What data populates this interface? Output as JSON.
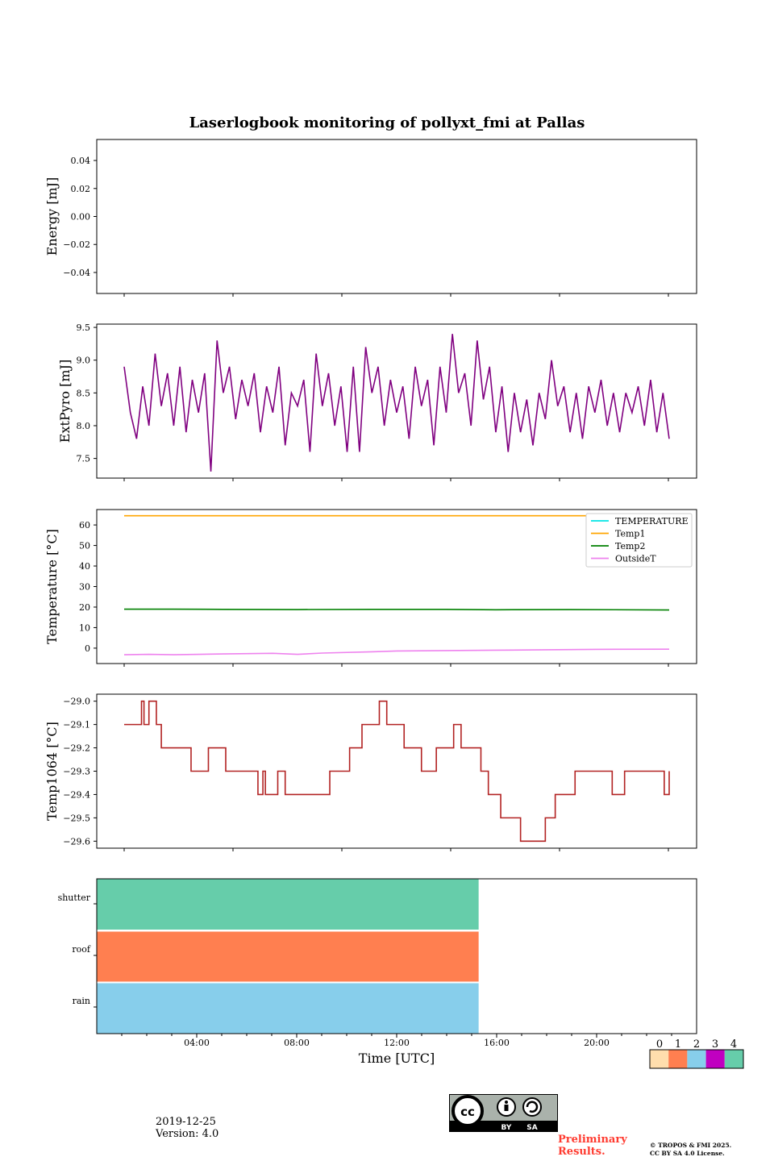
{
  "title": "Laserlogbook monitoring of pollyxt_fmi at Pallas",
  "footer": {
    "date": "2019-12-25",
    "version": "Version: 4.0",
    "preliminary_line1": "Preliminary",
    "preliminary_line2": "Results.",
    "copyright_line1": "© TROPOS & FMI 2025.",
    "copyright_line2": "CC BY SA 4.0 License.",
    "license_badge_labels": [
      "BY",
      "SA"
    ]
  },
  "chart_data": [
    {
      "type": "line",
      "id": "energy",
      "ylabel": "Energy [mJ]",
      "ylim": [
        -0.055,
        0.055
      ],
      "yticks": [
        0.04,
        0.02,
        0.0,
        -0.02,
        -0.04
      ],
      "ytick_labels": [
        "0.04",
        "0.02",
        "0.00",
        "−0.02",
        "−0.04"
      ],
      "series": []
    },
    {
      "type": "line",
      "id": "extpyro",
      "ylabel": "ExtPyro [mJ]",
      "ylim": [
        7.2,
        9.55
      ],
      "yticks": [
        9.5,
        9.0,
        8.5,
        8.0,
        7.5
      ],
      "ytick_labels": [
        "9.5",
        "9.0",
        "8.5",
        "8.0",
        "7.5"
      ],
      "series": [
        {
          "name": "ExtPyro",
          "color": "#800080",
          "x": [
            1.0,
            1.25,
            1.5,
            1.75,
            2.0,
            2.25,
            2.5,
            2.75,
            3.0,
            3.25,
            3.5,
            3.75,
            4.0,
            4.25,
            4.5,
            4.75,
            5.0,
            5.25,
            5.5,
            5.75,
            6.0,
            6.25,
            6.5,
            6.75,
            7.0,
            7.25,
            7.5,
            7.75,
            8.0,
            8.25,
            8.5,
            8.75,
            9.0,
            9.25,
            9.5,
            9.75,
            10.0,
            10.25,
            10.5,
            10.75,
            11.0,
            11.25,
            11.5,
            11.75,
            12.0,
            12.25,
            12.5,
            12.75,
            13.0,
            13.25,
            13.5,
            13.75,
            14.0,
            14.25,
            14.5,
            14.75,
            15.0,
            15.25,
            15.5,
            15.75,
            16.0,
            16.25,
            16.5,
            16.75,
            17.0,
            17.25,
            17.5,
            17.75,
            18.0,
            18.25,
            18.5,
            18.75,
            19.0,
            19.25,
            19.5,
            19.75,
            20.0,
            20.25,
            20.5,
            20.75,
            21.0,
            21.25,
            21.5,
            21.75,
            22.0,
            22.25,
            22.5,
            22.75,
            23.0
          ],
          "values": [
            8.9,
            8.2,
            7.8,
            8.6,
            8.0,
            9.1,
            8.3,
            8.8,
            8.0,
            8.9,
            7.9,
            8.7,
            8.2,
            8.8,
            7.3,
            9.3,
            8.5,
            8.9,
            8.1,
            8.7,
            8.3,
            8.8,
            7.9,
            8.6,
            8.2,
            8.9,
            7.7,
            8.5,
            8.3,
            8.7,
            7.6,
            9.1,
            8.3,
            8.8,
            8.0,
            8.6,
            7.6,
            8.9,
            7.6,
            9.2,
            8.5,
            8.9,
            8.0,
            8.7,
            8.2,
            8.6,
            7.8,
            8.9,
            8.3,
            8.7,
            7.7,
            8.9,
            8.2,
            9.4,
            8.5,
            8.8,
            8.0,
            9.3,
            8.4,
            8.9,
            7.9,
            8.6,
            7.6,
            8.5,
            7.9,
            8.4,
            7.7,
            8.5,
            8.1,
            9.0,
            8.3,
            8.6,
            7.9,
            8.5,
            7.8,
            8.6,
            8.2,
            8.7,
            8.0,
            8.5,
            7.9,
            8.5,
            8.2,
            8.6,
            8.0,
            8.7,
            7.9,
            8.5,
            7.8
          ]
        }
      ]
    },
    {
      "type": "line",
      "id": "temperature",
      "ylabel": "Temperature [°C]",
      "ylim": [
        -7.5,
        67.5
      ],
      "yticks": [
        60,
        50,
        40,
        30,
        20,
        10,
        0
      ],
      "ytick_labels": [
        "60",
        "50",
        "40",
        "30",
        "20",
        "10",
        "0"
      ],
      "legend": "top-right",
      "series": [
        {
          "name": "TEMPERATURE",
          "color": "#00e5e5",
          "x": [],
          "values": []
        },
        {
          "name": "Temp1",
          "color": "#ffa500",
          "x": [
            1,
            23
          ],
          "values": [
            64.5,
            64.5
          ]
        },
        {
          "name": "Temp2",
          "color": "#008000",
          "x": [
            1,
            3,
            5,
            8,
            11,
            14,
            16,
            19,
            23
          ],
          "values": [
            19.0,
            19.0,
            18.9,
            18.8,
            18.9,
            18.9,
            18.7,
            18.8,
            18.6
          ]
        },
        {
          "name": "OutsideT",
          "color": "#ee82ee",
          "x": [
            1,
            2,
            3,
            5,
            7,
            8,
            9,
            11,
            12,
            14,
            16,
            18,
            20,
            23
          ],
          "values": [
            -3.2,
            -3.0,
            -3.2,
            -2.8,
            -2.5,
            -3.0,
            -2.4,
            -1.8,
            -1.4,
            -1.2,
            -1.0,
            -0.8,
            -0.6,
            -0.5
          ]
        }
      ]
    },
    {
      "type": "line",
      "id": "temp1064",
      "ylabel": "Temp1064 [°C]",
      "ylim": [
        -29.63,
        -28.97
      ],
      "yticks": [
        -29.0,
        -29.1,
        -29.2,
        -29.3,
        -29.4,
        -29.5,
        -29.6
      ],
      "ytick_labels": [
        "−29.0",
        "−29.1",
        "−29.2",
        "−29.3",
        "−29.4",
        "−29.5",
        "−29.6"
      ],
      "series": [
        {
          "name": "Temp1064",
          "color": "#b22222",
          "step": true,
          "x": [
            1.0,
            1.7,
            1.8,
            2.0,
            2.3,
            2.5,
            3.7,
            4.4,
            5.1,
            6.4,
            6.6,
            6.7,
            7.2,
            7.5,
            8.2,
            9.3,
            9.8,
            10.1,
            10.6,
            11.3,
            11.6,
            12.3,
            13.0,
            13.3,
            13.6,
            14.3,
            14.6,
            15.4,
            15.7,
            16.2,
            17.0,
            18.0,
            18.4,
            18.7,
            19.2,
            20.7,
            21.2,
            22.5,
            22.8,
            23.0
          ],
          "values": [
            -29.1,
            -29.0,
            -29.1,
            -29.0,
            -29.1,
            -29.2,
            -29.3,
            -29.2,
            -29.3,
            -29.4,
            -29.3,
            -29.4,
            -29.3,
            -29.4,
            -29.4,
            -29.3,
            -29.3,
            -29.2,
            -29.1,
            -29.0,
            -29.1,
            -29.2,
            -29.3,
            -29.3,
            -29.2,
            -29.1,
            -29.2,
            -29.3,
            -29.4,
            -29.5,
            -29.6,
            -29.5,
            -29.4,
            -29.4,
            -29.3,
            -29.4,
            -29.3,
            -29.3,
            -29.4,
            -29.3
          ]
        }
      ]
    },
    {
      "type": "status",
      "id": "status",
      "rows": [
        "shutter",
        "roof",
        "rain"
      ],
      "row_status": [
        4,
        1,
        2
      ],
      "x_start": 0.0,
      "x_end": 15.15,
      "xlabel": "Time [UTC]",
      "xlim": [
        0,
        24
      ],
      "xticks": [
        4,
        8,
        12,
        16,
        20
      ],
      "xtick_labels": [
        "04:00",
        "08:00",
        "12:00",
        "16:00",
        "20:00"
      ],
      "colorbar": {
        "labels": [
          "0",
          "1",
          "2",
          "3",
          "4"
        ],
        "colors": [
          "#ffdead",
          "#ff7f50",
          "#87ceeb",
          "#c000c0",
          "#66cdaa"
        ]
      }
    }
  ]
}
